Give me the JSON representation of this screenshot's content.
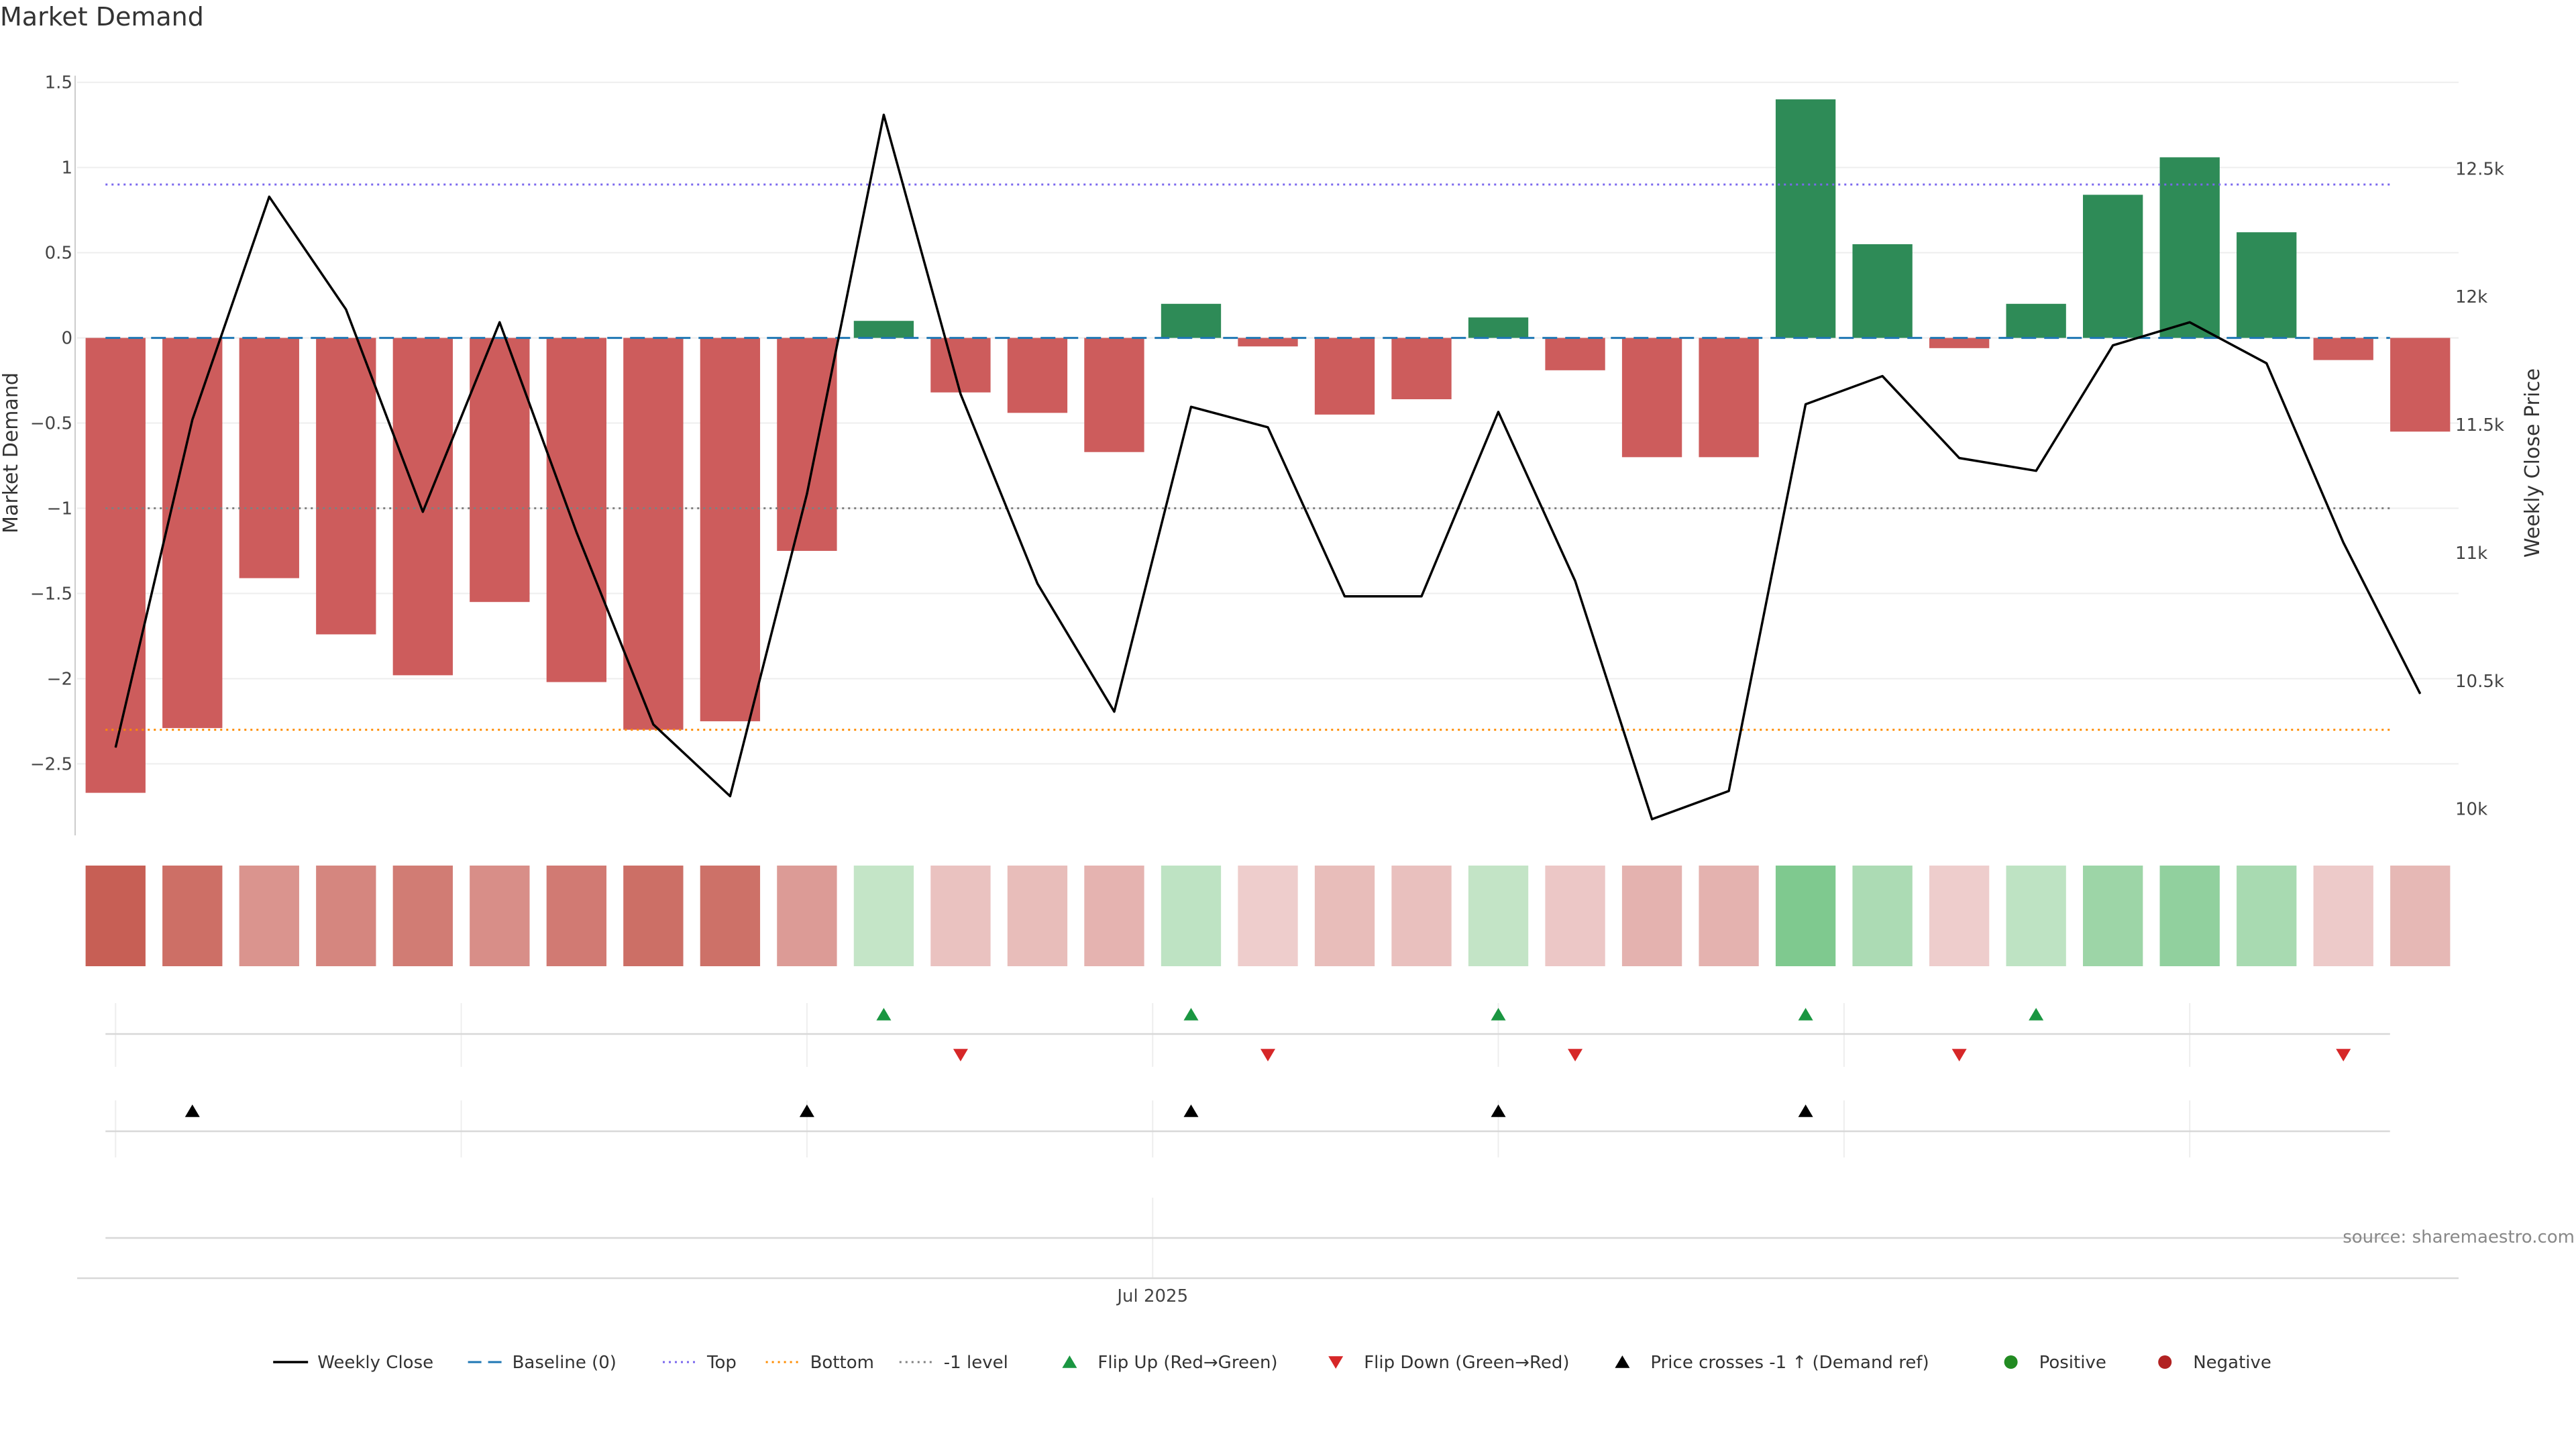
{
  "chart_data": {
    "type": "bar",
    "title": "Market Demand",
    "ylabel": "Market Demand",
    "y2label": "Weekly Close Price",
    "ylim": [
      -2.9,
      1.55
    ],
    "y2lim": [
      9910,
      12870
    ],
    "yticks": [
      {
        "v": 1.5,
        "label": "1.5"
      },
      {
        "v": 1,
        "label": "1"
      },
      {
        "v": 0.5,
        "label": "0.5"
      },
      {
        "v": 0,
        "label": "0"
      },
      {
        "v": -0.5,
        "label": "−0.5"
      },
      {
        "v": -1,
        "label": "−1"
      },
      {
        "v": -1.5,
        "label": "−1.5"
      },
      {
        "v": -2,
        "label": "−2"
      },
      {
        "v": -2.5,
        "label": "−2.5"
      }
    ],
    "y2ticks": [
      {
        "v": 12500,
        "label": "12.5k"
      },
      {
        "v": 12000,
        "label": "12k"
      },
      {
        "v": 11500,
        "label": "11.5k"
      },
      {
        "v": 11000,
        "label": "11k"
      },
      {
        "v": 10500,
        "label": "10.5k"
      },
      {
        "v": 10000,
        "label": "10k"
      }
    ],
    "xtick": {
      "index": 13.5,
      "label": "Jul 2025"
    },
    "week_dividers": [
      0,
      4.5,
      9,
      13.5,
      18,
      22.5,
      27
    ],
    "demand": [
      -2.67,
      -2.29,
      -1.41,
      -1.74,
      -1.98,
      -1.55,
      -2.02,
      -2.3,
      -2.25,
      -1.25,
      0.1,
      -0.32,
      -0.44,
      -0.67,
      0.2,
      -0.05,
      -0.45,
      -0.36,
      0.12,
      -0.19,
      -0.7,
      -0.7,
      1.4,
      0.55,
      -0.06,
      0.2,
      0.84,
      1.06,
      0.62,
      -0.13,
      -0.55
    ],
    "weekly_close": [
      10240,
      11520,
      12390,
      11950,
      11160,
      11900,
      11080,
      10330,
      10050,
      11230,
      12710,
      11620,
      10880,
      10380,
      11570,
      11490,
      10830,
      10830,
      11550,
      10890,
      9960,
      10070,
      11580,
      11690,
      11370,
      11320,
      11810,
      11900,
      11740,
      11040,
      10450
    ],
    "reference_lines": {
      "baseline": 0,
      "top": 0.9,
      "bottom": -2.3,
      "minus_one_level": -1
    },
    "flip_up_indices": [
      10,
      14,
      18,
      22,
      25
    ],
    "flip_down_indices": [
      11,
      15,
      19,
      24,
      29
    ],
    "price_cross_indices": [
      1,
      9,
      14,
      18,
      22
    ],
    "colors": {
      "positive_bar": "#2e8b57",
      "negative_bar": "#cd5c5c",
      "weekly_close": "#000000",
      "baseline": "#1f77b4",
      "top": "#7b68ee",
      "bottom": "#ff8c00",
      "minus_one": "#808080",
      "flip_up": "#1a9641",
      "flip_down": "#d62728",
      "price_cross": "#000000",
      "positive": "#228b22",
      "negative": "#b22222"
    },
    "legend_position": "bottom-center",
    "legend": [
      {
        "label": "Weekly Close",
        "kind": "line",
        "color": "#000000"
      },
      {
        "label": "Baseline (0)",
        "kind": "dash",
        "color": "#1f77b4"
      },
      {
        "label": "Top",
        "kind": "dot",
        "color": "#7b68ee"
      },
      {
        "label": "Bottom",
        "kind": "dot",
        "color": "#ff8c00"
      },
      {
        "label": "-1 level",
        "kind": "dot",
        "color": "#808080"
      },
      {
        "label": "Flip Up (Red→Green)",
        "kind": "tri-up",
        "color": "#1a9641"
      },
      {
        "label": "Flip Down (Green→Red)",
        "kind": "tri-down",
        "color": "#d62728"
      },
      {
        "label": "Price crosses -1 ↑ (Demand ref)",
        "kind": "tri-up",
        "color": "#000000"
      },
      {
        "label": "Positive",
        "kind": "circle",
        "color": "#228b22"
      },
      {
        "label": "Negative",
        "kind": "circle",
        "color": "#b22222"
      }
    ],
    "source": "source: sharemaestro.com"
  }
}
